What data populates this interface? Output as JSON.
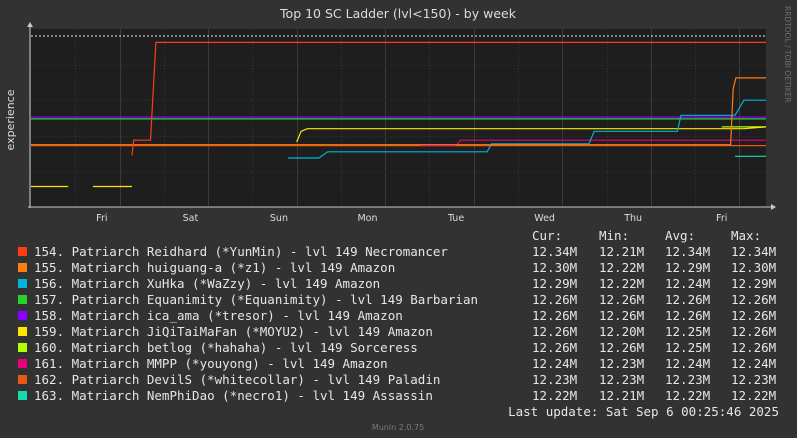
{
  "chart_data": {
    "type": "line",
    "title": "Top 10 SC Ladder (lvl<150) - by week",
    "ylabel": "experience",
    "watermark": "RRDTOOL / TOBI OETIKER",
    "footer": "Munin 2.0.75",
    "x_ticks": [
      "Fri",
      "Sat",
      "Sun",
      "Mon",
      "Tue",
      "Wed",
      "Thu",
      "Fri"
    ],
    "x_range_days": [
      0,
      8.3
    ],
    "y_range_millions": [
      12.155,
      12.355
    ],
    "grid": true,
    "legend_headers": [
      "Cur:",
      "Min:",
      "Avg:",
      "Max:"
    ],
    "last_update": "Last update: Sat Sep  6 00:25:46 2025",
    "series": [
      {
        "name": "154. Patriarch Reidhard (*YunMin) - lvl 149 Necromancer",
        "color": "#ff3c14",
        "cur": "12.34M",
        "min": "12.21M",
        "avg": "12.34M",
        "max": "12.34M",
        "points": [
          [
            1.14,
            12.213
          ],
          [
            1.16,
            12.23
          ],
          [
            1.35,
            12.23
          ],
          [
            1.41,
            12.34
          ],
          [
            8.3,
            12.34
          ]
        ]
      },
      {
        "name": "155. Matriarch huiguang-a (*z1) - lvl 149 Amazon",
        "color": "#ff7c10",
        "cur": "12.30M",
        "min": "12.22M",
        "avg": "12.29M",
        "max": "12.30M",
        "points": [
          [
            0.0,
            12.225
          ],
          [
            7.9,
            12.225
          ],
          [
            7.93,
            12.288
          ],
          [
            7.96,
            12.3
          ],
          [
            8.3,
            12.3
          ]
        ]
      },
      {
        "name": "156. Matriarch XuHka (*WaZzy) - lvl 149 Amazon",
        "color": "#00b4dc",
        "cur": "12.29M",
        "min": "12.22M",
        "avg": "12.24M",
        "max": "12.29M",
        "points": [
          [
            2.9,
            12.21
          ],
          [
            3.25,
            12.21
          ],
          [
            3.35,
            12.217
          ],
          [
            5.15,
            12.217
          ],
          [
            5.2,
            12.226
          ],
          [
            6.3,
            12.226
          ],
          [
            6.36,
            12.24
          ],
          [
            7.3,
            12.24
          ],
          [
            7.34,
            12.258
          ],
          [
            7.95,
            12.258
          ],
          [
            8.05,
            12.275
          ],
          [
            8.3,
            12.275
          ]
        ]
      },
      {
        "name": "157. Patriarch Equanimity (*Equanimity) - lvl 149 Barbarian",
        "color": "#28d228",
        "cur": "12.26M",
        "min": "12.26M",
        "avg": "12.26M",
        "max": "12.26M",
        "points": [
          [
            0.0,
            12.254
          ],
          [
            8.3,
            12.254
          ]
        ]
      },
      {
        "name": "158. Matriarch ica_ama (*tresor) - lvl 149 Amazon",
        "color": "#8c00ff",
        "cur": "12.26M",
        "min": "12.26M",
        "avg": "12.26M",
        "max": "12.26M",
        "points": [
          [
            0.0,
            12.256
          ],
          [
            8.3,
            12.256
          ]
        ]
      },
      {
        "name": "159. Matriarch JiQiTaiMaFan (*MOYU2) - lvl 149 Amazon",
        "color": "#ffe600",
        "cur": "12.26M",
        "min": "12.20M",
        "avg": "12.25M",
        "max": "12.26M",
        "points": [
          [
            0.0,
            12.178
          ],
          [
            0.42,
            12.178
          ],
          null,
          [
            0.7,
            12.178
          ],
          [
            1.14,
            12.178
          ],
          null,
          [
            3.0,
            12.228
          ],
          [
            3.05,
            12.24
          ],
          [
            3.12,
            12.243
          ],
          [
            8.05,
            12.243
          ],
          [
            8.3,
            12.245
          ]
        ]
      },
      {
        "name": "160. Matriarch betlog (*hahaha) - lvl 149 Sorceress",
        "color": "#b4ff00",
        "cur": "12.26M",
        "min": "12.26M",
        "avg": "12.25M",
        "max": "12.26M",
        "points": [
          [
            7.8,
            12.245
          ],
          [
            8.3,
            12.245
          ]
        ]
      },
      {
        "name": "161. Matriarch MMPP (*youyong) - lvl 149 Amazon",
        "color": "#e6007c",
        "cur": "12.24M",
        "min": "12.23M",
        "avg": "12.24M",
        "max": "12.24M",
        "points": [
          [
            4.4,
            12.224
          ],
          [
            4.8,
            12.224
          ],
          [
            4.85,
            12.23
          ],
          [
            8.3,
            12.23
          ]
        ]
      },
      {
        "name": "162. Patriarch DevilS (*whitecollar) - lvl 149 Paladin",
        "color": "#e65a10",
        "cur": "12.23M",
        "min": "12.23M",
        "avg": "12.23M",
        "max": "12.23M",
        "points": [
          [
            0.0,
            12.224
          ],
          [
            8.3,
            12.224
          ]
        ]
      },
      {
        "name": "163. Matriarch NemPhiDao (*necro1) - lvl 149 Assassin",
        "color": "#14dcaa",
        "cur": "12.22M",
        "min": "12.21M",
        "avg": "12.22M",
        "max": "12.22M",
        "points": [
          [
            7.95,
            12.212
          ],
          [
            8.3,
            12.212
          ]
        ]
      }
    ]
  }
}
